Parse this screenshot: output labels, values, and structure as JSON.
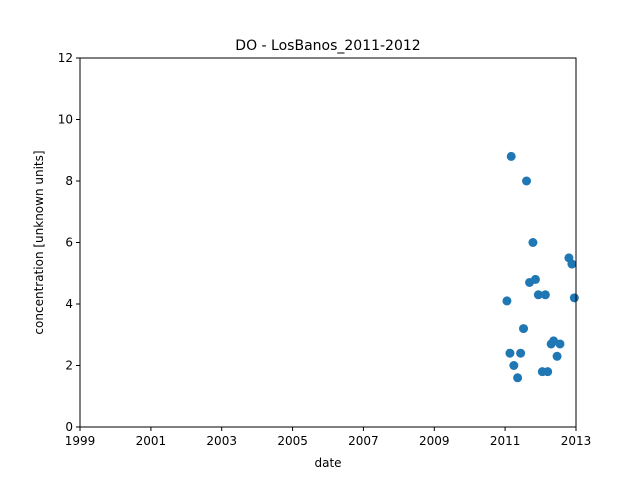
{
  "chart_data": {
    "type": "scatter",
    "title": "DO - LosBanos_2011-2012",
    "xlabel": "date",
    "ylabel": "concentration [unknown units]",
    "xlim": [
      "1999-01-01",
      "2013-01-01"
    ],
    "ylim": [
      0,
      12
    ],
    "x_ticks": [
      "1999",
      "2001",
      "2003",
      "2005",
      "2007",
      "2009",
      "2011",
      "2013"
    ],
    "y_ticks": [
      "0",
      "2",
      "4",
      "6",
      "8",
      "10",
      "12"
    ],
    "grid": false,
    "legend": "none",
    "marker_color": "#1f77b4",
    "points": [
      {
        "x": "2011-01-20",
        "y": 4.1
      },
      {
        "x": "2011-02-20",
        "y": 2.4
      },
      {
        "x": "2011-03-05",
        "y": 8.8
      },
      {
        "x": "2011-04-01",
        "y": 2.0
      },
      {
        "x": "2011-05-10",
        "y": 1.6
      },
      {
        "x": "2011-06-10",
        "y": 2.4
      },
      {
        "x": "2011-07-10",
        "y": 3.2
      },
      {
        "x": "2011-08-10",
        "y": 8.0
      },
      {
        "x": "2011-09-10",
        "y": 4.7
      },
      {
        "x": "2011-10-15",
        "y": 6.0
      },
      {
        "x": "2011-11-10",
        "y": 4.8
      },
      {
        "x": "2011-12-10",
        "y": 4.3
      },
      {
        "x": "2012-01-20",
        "y": 1.8
      },
      {
        "x": "2012-02-20",
        "y": 4.3
      },
      {
        "x": "2012-03-15",
        "y": 1.8
      },
      {
        "x": "2012-04-20",
        "y": 2.7
      },
      {
        "x": "2012-05-15",
        "y": 2.8
      },
      {
        "x": "2012-06-20",
        "y": 2.3
      },
      {
        "x": "2012-07-20",
        "y": 2.7
      },
      {
        "x": "2012-10-20",
        "y": 5.5
      },
      {
        "x": "2012-11-20",
        "y": 5.3
      },
      {
        "x": "2012-12-15",
        "y": 4.2
      }
    ]
  }
}
